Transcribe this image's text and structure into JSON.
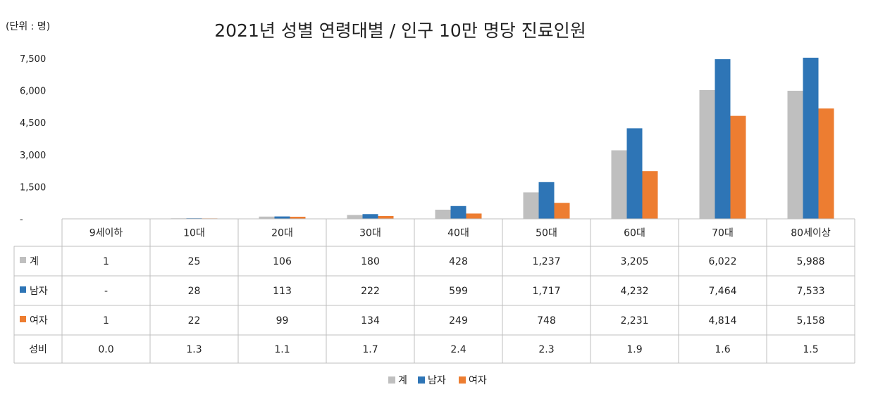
{
  "chart_data": {
    "type": "bar",
    "title": "2021년 성별 연령대별 / 인구 10만 명당 진료인원",
    "unit_label": "(단위 : 명)",
    "categories": [
      "9세이하",
      "10대",
      "20대",
      "30대",
      "40대",
      "50대",
      "60대",
      "70대",
      "80세이상"
    ],
    "series": [
      {
        "name": "계",
        "color": "#bfbfbf",
        "values": [
          1,
          25,
          106,
          180,
          428,
          1237,
          3205,
          6022,
          5988
        ],
        "labels": [
          "1",
          "25",
          "106",
          "180",
          "428",
          "1,237",
          "3,205",
          "6,022",
          "5,988"
        ]
      },
      {
        "name": "남자",
        "color": "#2e75b6",
        "values": [
          0,
          28,
          113,
          222,
          599,
          1717,
          4232,
          7464,
          7533
        ],
        "labels": [
          "-",
          "28",
          "113",
          "222",
          "599",
          "1,717",
          "4,232",
          "7,464",
          "7,533"
        ]
      },
      {
        "name": "여자",
        "color": "#ed7d31",
        "values": [
          1,
          22,
          99,
          134,
          249,
          748,
          2231,
          4814,
          5158
        ],
        "labels": [
          "1",
          "22",
          "99",
          "134",
          "249",
          "748",
          "2,231",
          "4,814",
          "5,158"
        ]
      }
    ],
    "extra_rows": [
      {
        "name": "성비",
        "labels": [
          "0.0",
          "1.3",
          "1.1",
          "1.7",
          "2.4",
          "2.3",
          "1.9",
          "1.6",
          "1.5"
        ]
      }
    ],
    "ylim": [
      0,
      7500
    ],
    "yticks": [
      {
        "value": 0,
        "label": "-"
      },
      {
        "value": 1500,
        "label": "1,500"
      },
      {
        "value": 3000,
        "label": "3,000"
      },
      {
        "value": 4500,
        "label": "4,500"
      },
      {
        "value": 6000,
        "label": "6,000"
      },
      {
        "value": 7500,
        "label": "7,500"
      }
    ],
    "gridlines": false,
    "legend_position": "bottom-center"
  }
}
